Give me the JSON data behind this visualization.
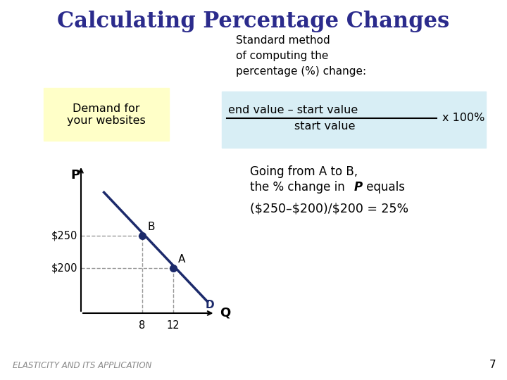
{
  "title": "Calculating Percentage Changes",
  "title_color": "#2B2B8C",
  "title_fontsize": 22,
  "bg_color": "#FFFFFF",
  "demand_box_text": "Demand for\nyour websites",
  "demand_box_bg": "#FFFFF0",
  "standard_method_text": "Standard method\nof computing the\npercentage (%) change:",
  "formula_bg": "#DCF0F8",
  "formula_numerator": "end value – start value",
  "formula_denominator": "start value",
  "formula_multiplier": "x 100%",
  "going_from_text1": "Going from A to B,",
  "going_from_text2": "the % change in ",
  "going_from_bold": "P",
  "going_from_text3": " equals",
  "result_text": "($250–$200)/$200 = 25%",
  "footer_text": "ELASTICITY AND ITS APPLICATION",
  "footer_page": "7",
  "graph_line_color": "#1C2A6B",
  "graph_point_color": "#1C2A6B",
  "dashed_color": "#999999",
  "point_A": [
    12,
    200
  ],
  "point_B": [
    8,
    250
  ],
  "x_label": "Q",
  "y_label": "P",
  "y_labels": [
    "$200",
    "$250"
  ]
}
